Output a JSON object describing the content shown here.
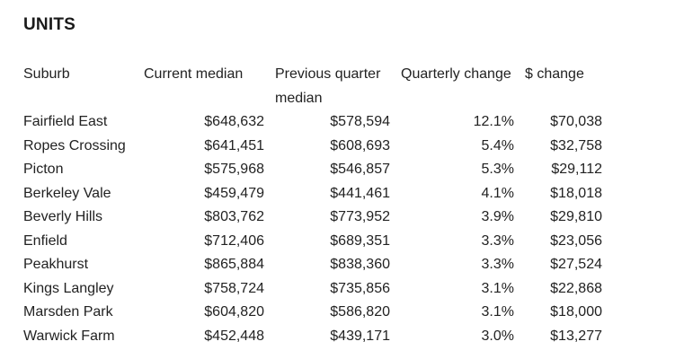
{
  "heading": "UNITS",
  "table": {
    "headers": {
      "suburb": "Suburb",
      "current": "Current median",
      "previous": "Previous quarter median",
      "quarterly_change": "Quarterly change",
      "dollar_change": "$ change"
    },
    "rows": [
      {
        "suburb": "Fairfield East",
        "current": "$648,632",
        "previous": "$578,594",
        "quarterly_change": "12.1%",
        "dollar_change": "$70,038"
      },
      {
        "suburb": "Ropes Crossing",
        "current": "$641,451",
        "previous": "$608,693",
        "quarterly_change": "5.4%",
        "dollar_change": "$32,758"
      },
      {
        "suburb": "Picton",
        "current": "$575,968",
        "previous": "$546,857",
        "quarterly_change": "5.3%",
        "dollar_change": "$29,112"
      },
      {
        "suburb": "Berkeley Vale",
        "current": "$459,479",
        "previous": "$441,461",
        "quarterly_change": "4.1%",
        "dollar_change": "$18,018"
      },
      {
        "suburb": "Beverly Hills",
        "current": "$803,762",
        "previous": "$773,952",
        "quarterly_change": "3.9%",
        "dollar_change": "$29,810"
      },
      {
        "suburb": "Enfield",
        "current": "$712,406",
        "previous": "$689,351",
        "quarterly_change": "3.3%",
        "dollar_change": "$23,056"
      },
      {
        "suburb": "Peakhurst",
        "current": "$865,884",
        "previous": "$838,360",
        "quarterly_change": "3.3%",
        "dollar_change": "$27,524"
      },
      {
        "suburb": "Kings Langley",
        "current": "$758,724",
        "previous": "$735,856",
        "quarterly_change": "3.1%",
        "dollar_change": "$22,868"
      },
      {
        "suburb": "Marsden Park",
        "current": "$604,820",
        "previous": "$586,820",
        "quarterly_change": "3.1%",
        "dollar_change": "$18,000"
      },
      {
        "suburb": "Warwick Farm",
        "current": "$452,448",
        "previous": "$439,171",
        "quarterly_change": "3.0%",
        "dollar_change": "$13,277"
      }
    ]
  }
}
